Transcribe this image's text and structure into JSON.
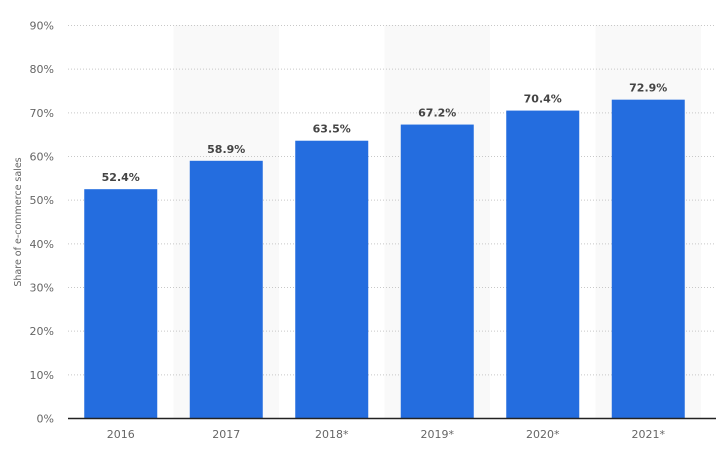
{
  "chart_data": {
    "type": "bar",
    "title": "",
    "xlabel": "",
    "ylabel": "Share of e-commerce sales",
    "categories": [
      "2016",
      "2017",
      "2018*",
      "2019*",
      "2020*",
      "2021*"
    ],
    "values": [
      52.4,
      58.9,
      63.5,
      67.2,
      70.4,
      72.9
    ],
    "data_labels": [
      "52.4%",
      "58.9%",
      "63.5%",
      "67.2%",
      "70.4%",
      "72.9%"
    ],
    "ylim": [
      0,
      90
    ],
    "yticks": [
      0,
      10,
      20,
      30,
      40,
      50,
      60,
      70,
      80,
      90
    ],
    "ytick_labels": [
      "0%",
      "10%",
      "20%",
      "30%",
      "40%",
      "50%",
      "60%",
      "70%",
      "80%",
      "90%"
    ],
    "grid": true,
    "legend": "none",
    "colors": {
      "bar": "#246ddf",
      "grid": "#c8c8c8",
      "band": "#f9f9f9",
      "axis": "#222222"
    }
  }
}
